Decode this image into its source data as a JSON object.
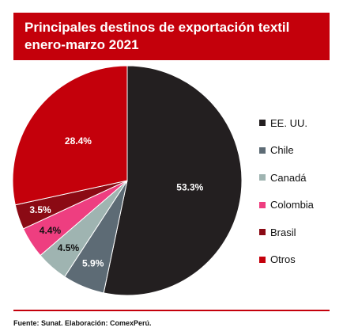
{
  "title": {
    "line1": "Principales destinos de exportación textil",
    "line2": "enero-marzo 2021"
  },
  "chart_data": {
    "type": "pie",
    "title": "Principales destinos de exportación textil enero-marzo 2021",
    "slices": [
      {
        "name": "EE. UU.",
        "value": 53.3,
        "label": "53.3%",
        "color": "#231f20",
        "label_color": "#ffffff"
      },
      {
        "name": "Chile",
        "value": 5.9,
        "label": "5.9%",
        "color": "#5d6b75",
        "label_color": "#ffffff"
      },
      {
        "name": "Canadá",
        "value": 4.5,
        "label": "4.5%",
        "color": "#9fb4b1",
        "label_color": "#111111"
      },
      {
        "name": "Colombia",
        "value": 4.4,
        "label": "4.4%",
        "color": "#ee3e80",
        "label_color": "#111111"
      },
      {
        "name": "Brasil",
        "value": 3.5,
        "label": "3.5%",
        "color": "#8b0a14",
        "label_color": "#ffffff"
      },
      {
        "name": "Otros",
        "value": 28.4,
        "label": "28.4%",
        "color": "#c4000b",
        "label_color": "#ffffff"
      }
    ],
    "legend_position": "right"
  },
  "source": "Fuente: Sunat. Elaboración: ComexPerú."
}
